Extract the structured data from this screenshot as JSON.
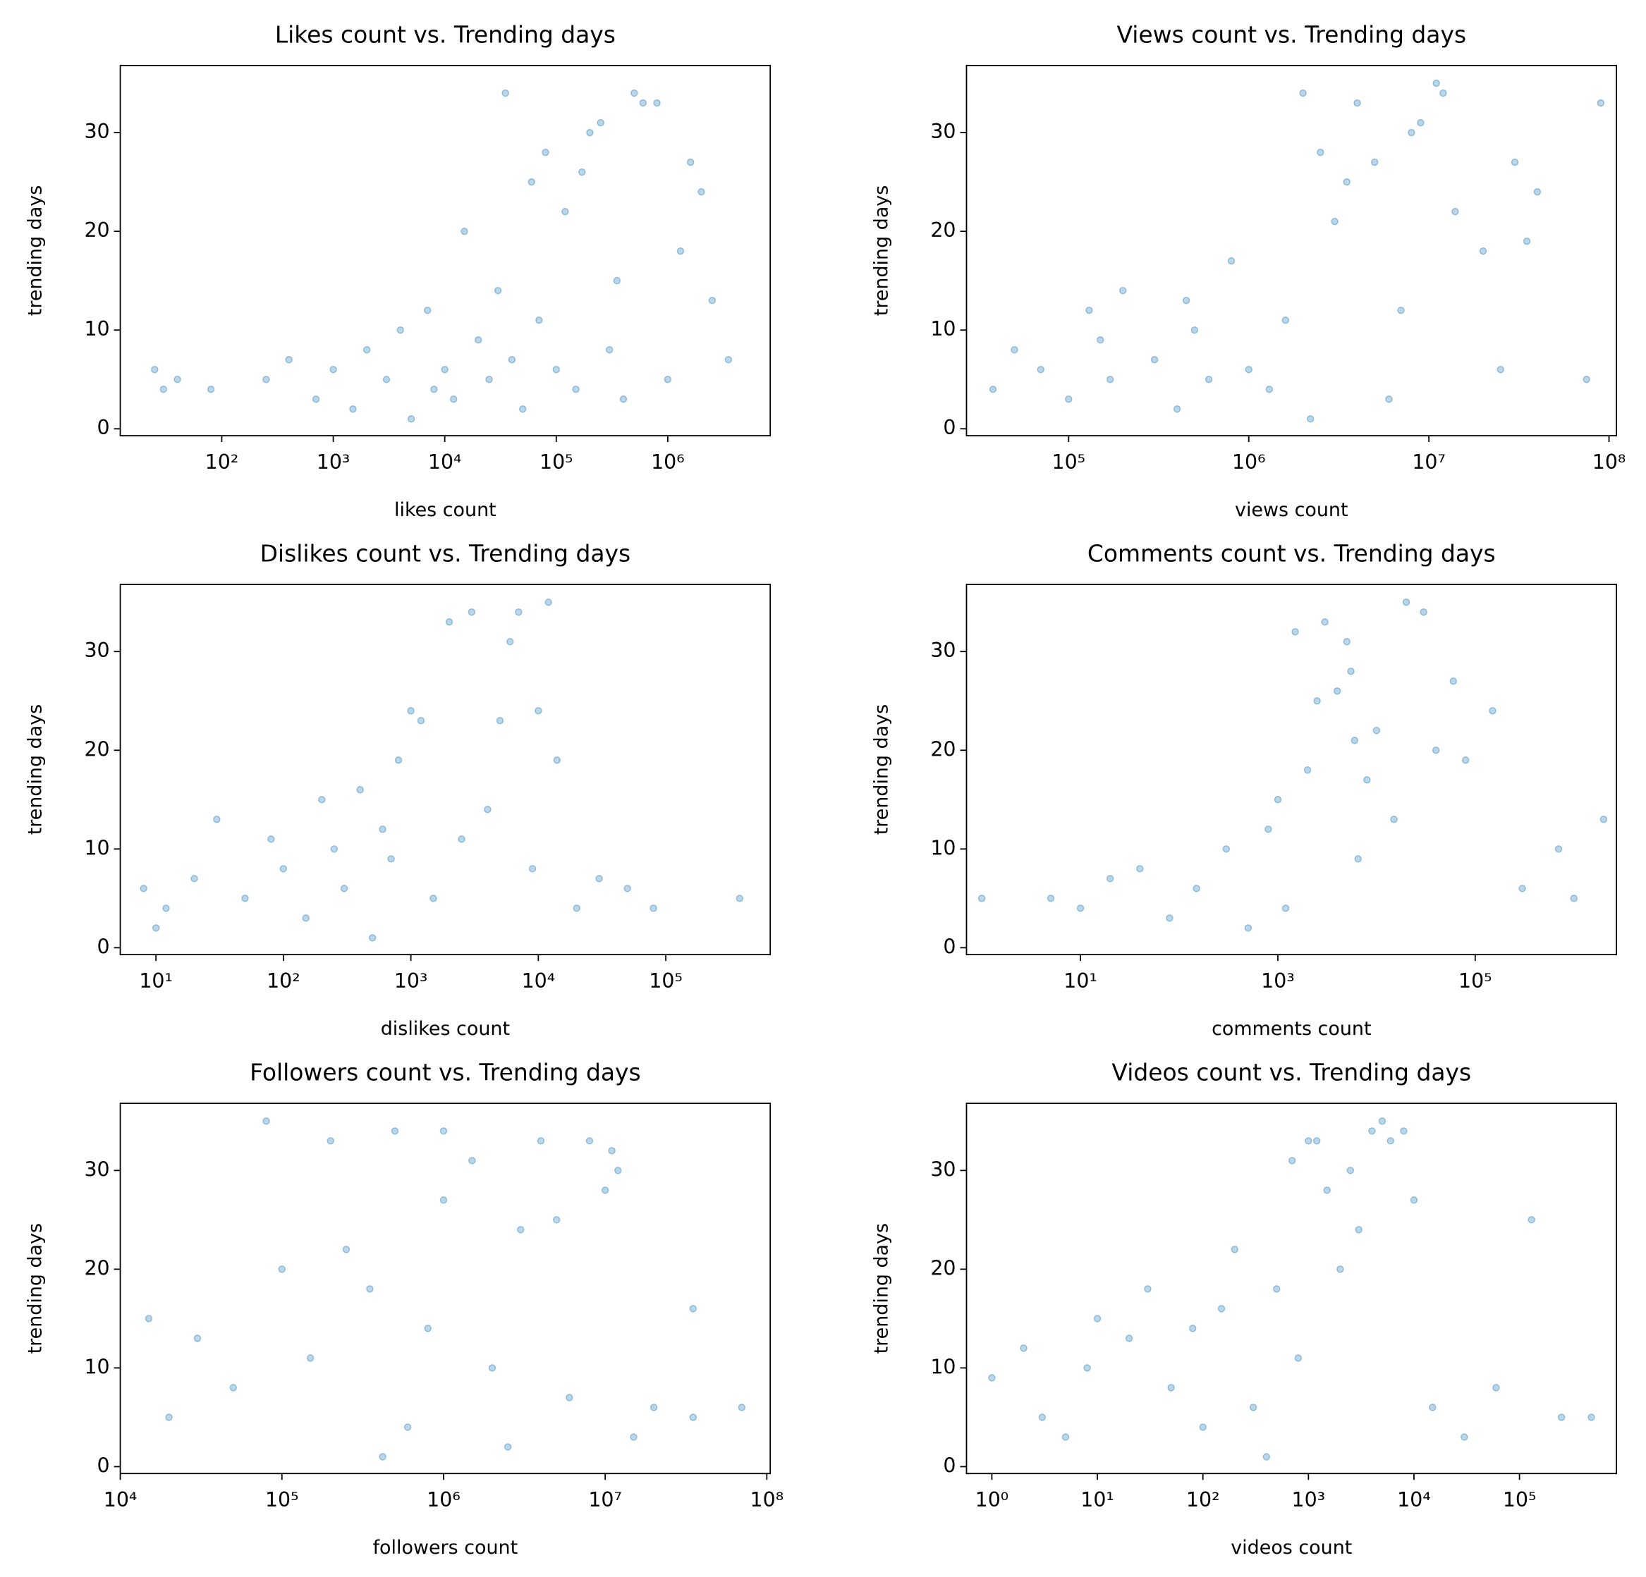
{
  "chart_data": [
    {
      "type": "scatter",
      "title": "Likes count vs. Trending days",
      "xlabel": "likes count",
      "ylabel": "trending days",
      "xscale": "log",
      "color": "#1f77b4",
      "xlim": [
        12.3,
        8300000
      ],
      "ylim": [
        -0.7,
        36.8
      ],
      "xticks": [
        {
          "value": 100,
          "label": "10²"
        },
        {
          "value": 1000,
          "label": "10³"
        },
        {
          "value": 10000,
          "label": "10⁴"
        },
        {
          "value": 100000,
          "label": "10⁵"
        },
        {
          "value": 1000000,
          "label": "10⁶"
        }
      ],
      "yticks": [
        0,
        10,
        20,
        30
      ],
      "x": [
        25,
        30,
        40,
        80,
        250,
        400,
        700,
        1000,
        1500,
        2000,
        3000,
        4000,
        5000,
        7000,
        8000,
        10000,
        12000,
        15000,
        20000,
        25000,
        30000,
        35000,
        40000,
        50000,
        60000,
        70000,
        80000,
        100000,
        120000,
        150000,
        170000,
        200000,
        250000,
        300000,
        350000,
        400000,
        500000,
        600000,
        800000,
        1000000,
        1300000,
        1600000,
        2000000,
        2500000,
        3500000
      ],
      "y": [
        6,
        4,
        5,
        4,
        5,
        7,
        3,
        6,
        2,
        8,
        5,
        10,
        1,
        12,
        4,
        6,
        3,
        20,
        9,
        5,
        14,
        34,
        7,
        2,
        25,
        11,
        28,
        6,
        22,
        4,
        26,
        30,
        31,
        8,
        15,
        3,
        34,
        33,
        33,
        5,
        18,
        27,
        24,
        13,
        7
      ]
    },
    {
      "type": "scatter",
      "title": "Views count vs. Trending days",
      "xlabel": "views count",
      "ylabel": "trending days",
      "xscale": "log",
      "color": "#1f77b4",
      "xlim": [
        27100,
        110000000
      ],
      "ylim": [
        -0.7,
        36.8
      ],
      "xticks": [
        {
          "value": 100000,
          "label": "10⁵"
        },
        {
          "value": 1000000,
          "label": "10⁶"
        },
        {
          "value": 10000000,
          "label": "10⁷"
        },
        {
          "value": 100000000,
          "label": "10⁸"
        }
      ],
      "yticks": [
        0,
        10,
        20,
        30
      ],
      "x": [
        38000,
        50000,
        70000,
        100000,
        130000,
        150000,
        170000,
        200000,
        300000,
        400000,
        450000,
        500000,
        600000,
        800000,
        1000000,
        1300000,
        1600000,
        2000000,
        2200000,
        2500000,
        3000000,
        3500000,
        4000000,
        5000000,
        6000000,
        7000000,
        8000000,
        9000000,
        11000000,
        12000000,
        14000000,
        20000000,
        25000000,
        30000000,
        35000000,
        40000000,
        75000000,
        90000000
      ],
      "y": [
        4,
        8,
        6,
        3,
        12,
        9,
        5,
        14,
        7,
        2,
        13,
        10,
        5,
        17,
        6,
        4,
        11,
        34,
        1,
        28,
        21,
        25,
        33,
        27,
        3,
        12,
        30,
        31,
        35,
        34,
        22,
        18,
        6,
        27,
        19,
        24,
        5,
        33
      ]
    },
    {
      "type": "scatter",
      "title": "Dislikes count vs. Trending days",
      "xlabel": "dislikes count",
      "ylabel": "trending days",
      "xscale": "log",
      "color": "#1f77b4",
      "xlim": [
        5.25,
        660000
      ],
      "ylim": [
        -0.7,
        36.8
      ],
      "xticks": [
        {
          "value": 10,
          "label": "10¹"
        },
        {
          "value": 100,
          "label": "10²"
        },
        {
          "value": 1000,
          "label": "10³"
        },
        {
          "value": 10000,
          "label": "10⁴"
        },
        {
          "value": 100000,
          "label": "10⁵"
        }
      ],
      "yticks": [
        0,
        10,
        20,
        30
      ],
      "x": [
        8,
        10,
        12,
        20,
        30,
        50,
        80,
        100,
        150,
        200,
        250,
        300,
        400,
        500,
        600,
        700,
        800,
        1000,
        1200,
        1500,
        2000,
        2500,
        3000,
        4000,
        5000,
        6000,
        7000,
        9000,
        10000,
        12000,
        14000,
        20000,
        30000,
        50000,
        80000,
        380000
      ],
      "y": [
        6,
        2,
        4,
        7,
        13,
        5,
        11,
        8,
        3,
        15,
        10,
        6,
        16,
        1,
        12,
        9,
        19,
        24,
        23,
        5,
        33,
        11,
        34,
        14,
        23,
        31,
        34,
        8,
        24,
        35,
        19,
        4,
        7,
        6,
        4,
        5
      ]
    },
    {
      "type": "scatter",
      "title": "Comments count vs. Trending days",
      "xlabel": "comments count",
      "ylabel": "trending days",
      "xscale": "log",
      "color": "#1f77b4",
      "xlim": [
        0.7,
        2700000
      ],
      "ylim": [
        -0.7,
        36.8
      ],
      "xticks": [
        {
          "value": 10,
          "label": "10¹"
        },
        {
          "value": 1000,
          "label": "10³"
        },
        {
          "value": 100000,
          "label": "10⁵"
        }
      ],
      "yticks": [
        0,
        10,
        20,
        30
      ],
      "x": [
        1,
        5,
        10,
        20,
        40,
        80,
        150,
        300,
        500,
        800,
        1000,
        1200,
        1500,
        2000,
        2500,
        3000,
        4000,
        5000,
        5500,
        6000,
        6500,
        8000,
        10000,
        15000,
        20000,
        30000,
        40000,
        60000,
        80000,
        150000,
        300000,
        700000,
        1000000,
        2000000
      ],
      "y": [
        5,
        5,
        4,
        7,
        8,
        3,
        6,
        10,
        2,
        12,
        15,
        4,
        32,
        18,
        25,
        33,
        26,
        31,
        28,
        21,
        9,
        17,
        22,
        13,
        35,
        34,
        20,
        27,
        19,
        24,
        6,
        10,
        5,
        13
      ]
    },
    {
      "type": "scatter",
      "title": "Followers count vs. Trending days",
      "xlabel": "followers count",
      "ylabel": "trending days",
      "xscale": "log",
      "color": "#1f77b4",
      "xlim": [
        10000,
        105000000
      ],
      "ylim": [
        -0.7,
        36.8
      ],
      "xticks": [
        {
          "value": 10000,
          "label": "10⁴"
        },
        {
          "value": 100000,
          "label": "10⁵"
        },
        {
          "value": 1000000,
          "label": "10⁶"
        },
        {
          "value": 10000000,
          "label": "10⁷"
        },
        {
          "value": 100000000,
          "label": "10⁸"
        }
      ],
      "yticks": [
        0,
        10,
        20,
        30
      ],
      "x": [
        15000,
        20000,
        30000,
        50000,
        80000,
        100000,
        150000,
        200000,
        250000,
        350000,
        420000,
        500000,
        600000,
        800000,
        1000000,
        1000000,
        1500000,
        2000000,
        2500000,
        3000000,
        4000000,
        5000000,
        6000000,
        8000000,
        10000000,
        11000000,
        12000000,
        15000000,
        20000000,
        35000000,
        35000000,
        70000000
      ],
      "y": [
        15,
        5,
        13,
        8,
        35,
        20,
        11,
        33,
        22,
        18,
        1,
        34,
        4,
        14,
        34,
        27,
        31,
        10,
        2,
        24,
        33,
        25,
        7,
        33,
        28,
        32,
        30,
        3,
        6,
        16,
        5,
        6
      ]
    },
    {
      "type": "scatter",
      "title": "Videos count vs. Trending days",
      "xlabel": "videos count",
      "ylabel": "trending days",
      "xscale": "log",
      "color": "#1f77b4",
      "xlim": [
        0.575,
        830000
      ],
      "ylim": [
        -0.7,
        36.8
      ],
      "xticks": [
        {
          "value": 1,
          "label": "10⁰"
        },
        {
          "value": 10,
          "label": "10¹"
        },
        {
          "value": 100,
          "label": "10²"
        },
        {
          "value": 1000,
          "label": "10³"
        },
        {
          "value": 10000,
          "label": "10⁴"
        },
        {
          "value": 100000,
          "label": "10⁵"
        }
      ],
      "yticks": [
        0,
        10,
        20,
        30
      ],
      "x": [
        1,
        2,
        3,
        5,
        8,
        10,
        20,
        30,
        50,
        80,
        100,
        150,
        200,
        300,
        400,
        500,
        700,
        800,
        1000,
        1200,
        1500,
        2000,
        2500,
        3000,
        4000,
        5000,
        6000,
        8000,
        10000,
        15000,
        30000,
        60000,
        130000,
        250000,
        480000
      ],
      "y": [
        9,
        12,
        5,
        3,
        10,
        15,
        13,
        18,
        8,
        14,
        4,
        16,
        22,
        6,
        1,
        18,
        31,
        11,
        33,
        33,
        28,
        20,
        30,
        24,
        34,
        35,
        33,
        34,
        27,
        6,
        3,
        8,
        25,
        5,
        5
      ]
    }
  ]
}
